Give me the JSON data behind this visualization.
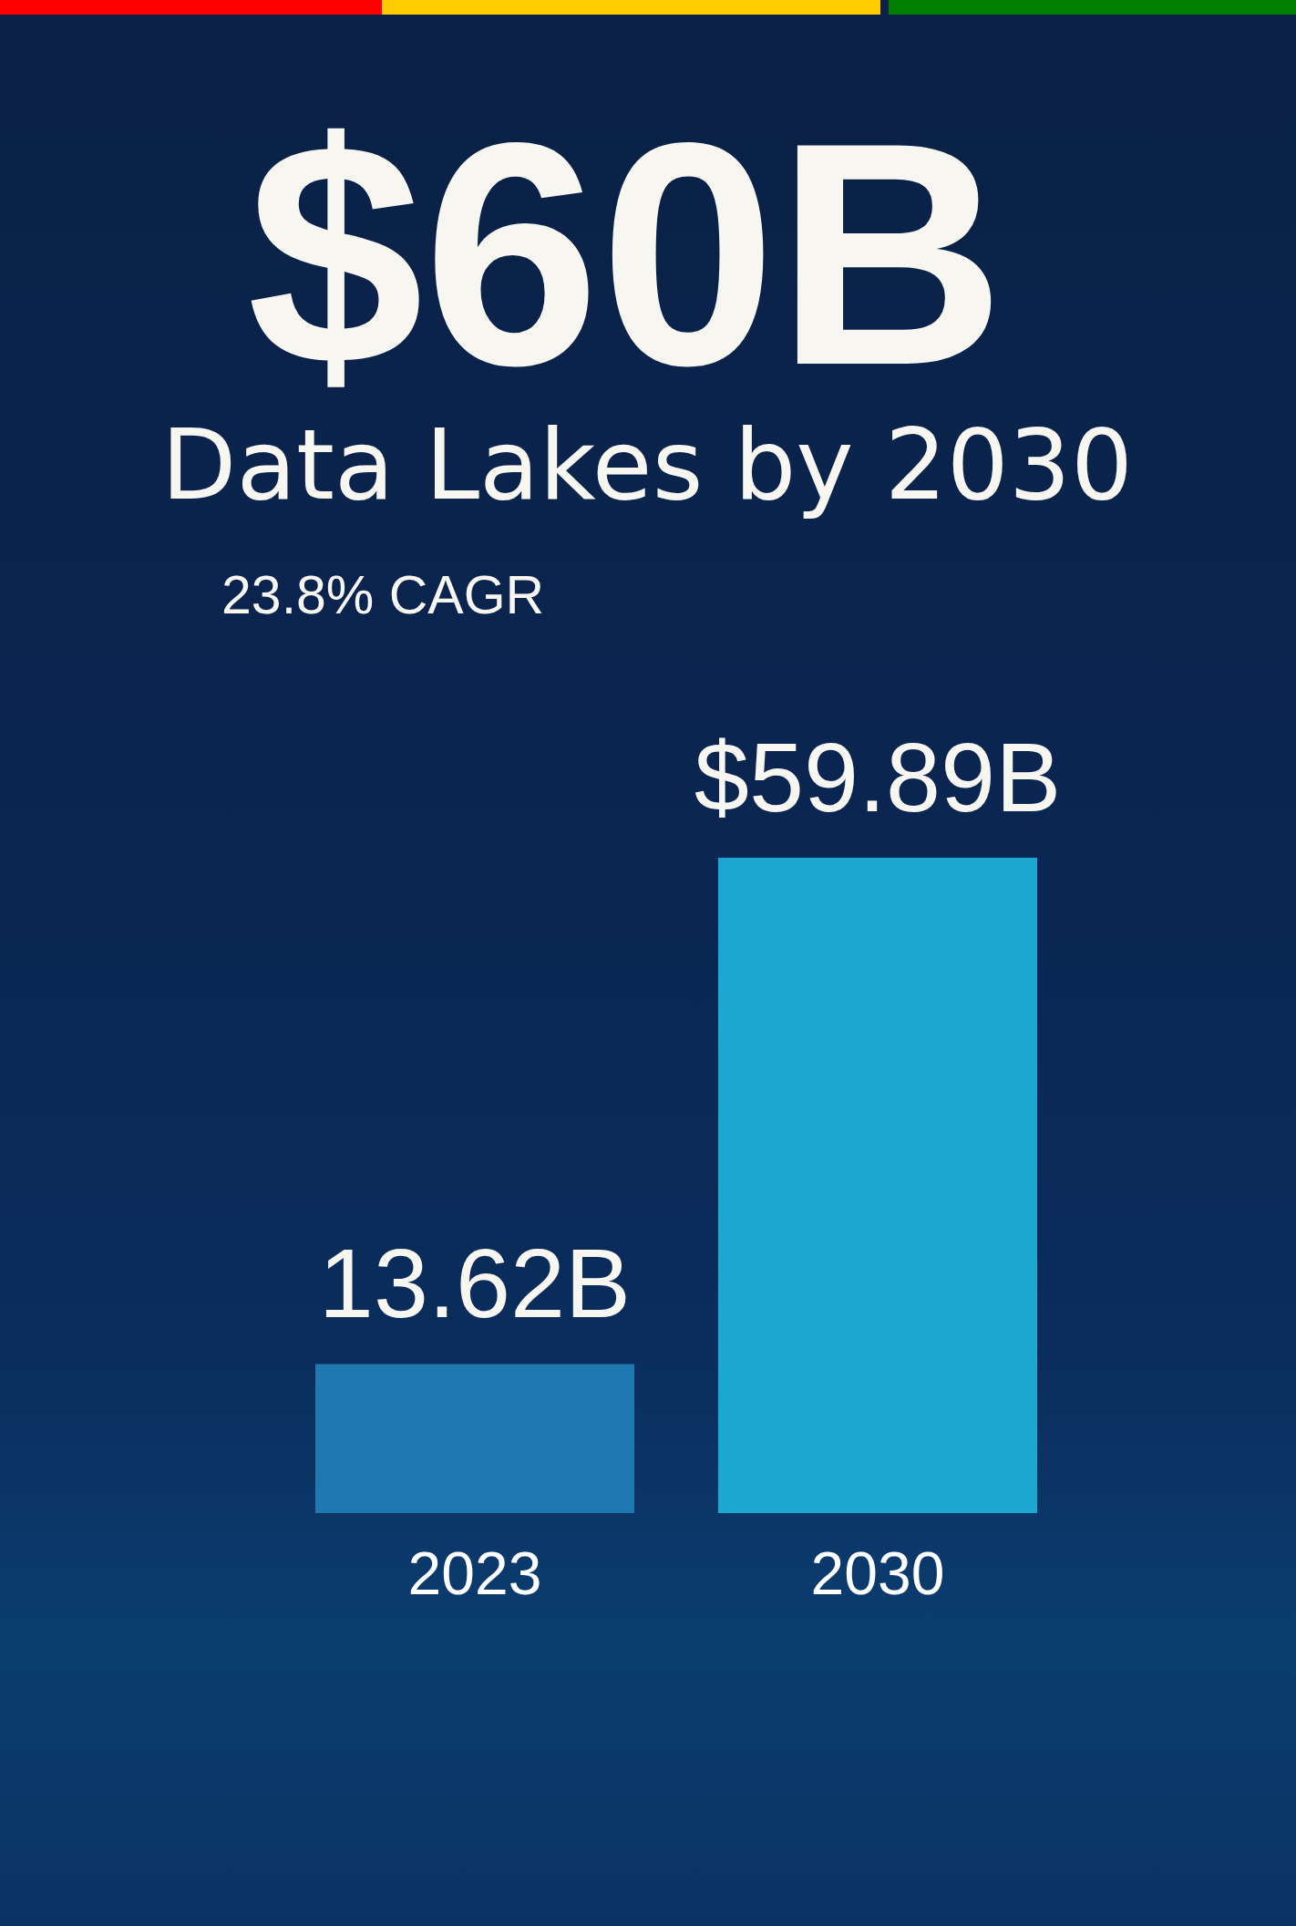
{
  "chart_data": {
    "type": "bar",
    "title": "$60B",
    "subtitle": "Data Lakes by 2030",
    "annotations": [
      "23.8% CAGR"
    ],
    "categories": [
      "2023",
      "2030"
    ],
    "values": [
      13.62,
      59.89
    ],
    "colors": [
      "#1f78b0",
      "#1ba7cf"
    ],
    "value_labels": [
      "13.62B",
      "$59.89B"
    ]
  }
}
